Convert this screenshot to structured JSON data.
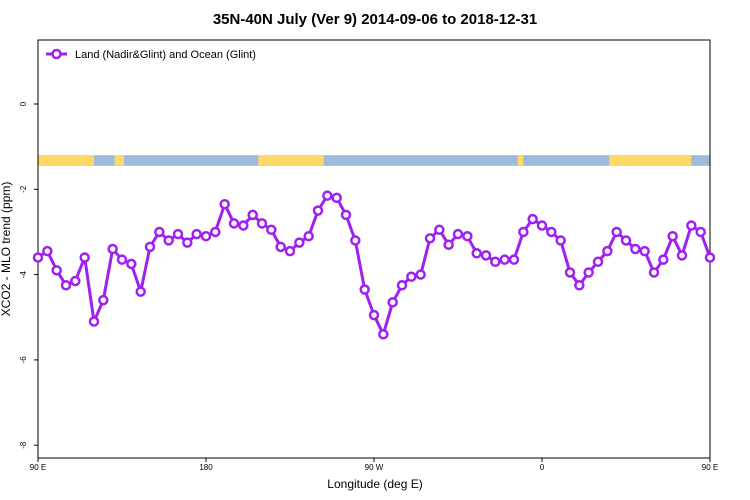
{
  "chart_data": {
    "type": "line",
    "title": "35N-40N July (Ver 9)   2014-09-06 to 2018-12-31",
    "xlabel": "Longitude (deg E)",
    "ylabel": "XCO2 - MLO trend (ppm)",
    "xlim": [
      90,
      450
    ],
    "ylim": [
      -8.3,
      1.5
    ],
    "x_ticks": [
      {
        "value": 90,
        "label": "90 E"
      },
      {
        "value": 180,
        "label": "180"
      },
      {
        "value": 270,
        "label": "90 W"
      },
      {
        "value": 360,
        "label": "0"
      },
      {
        "value": 450,
        "label": "90 E"
      },
      {
        "value": 540,
        "label": "180"
      }
    ],
    "y_ticks": [
      {
        "value": 0,
        "label": "0"
      },
      {
        "value": -2,
        "label": "-2"
      },
      {
        "value": -4,
        "label": "-4"
      },
      {
        "value": -6,
        "label": "-6"
      },
      {
        "value": -8,
        "label": "-8"
      }
    ],
    "grid": false,
    "legend_position": "top-left",
    "colors": {
      "series": "#a020f0",
      "land": "#ffd966",
      "ocean": "#9fb9dc"
    },
    "land_ocean_strip": {
      "y_range": [
        -1.45,
        -1.2
      ],
      "land_ranges": [
        [
          90,
          120
        ],
        [
          131,
          136
        ],
        [
          208,
          243
        ],
        [
          347,
          350
        ],
        [
          396,
          440
        ],
        [
          466,
          468
        ]
      ]
    },
    "series": [
      {
        "name": "Land (Nadir&Glint) and Ocean (Glint)",
        "x": [
          90,
          95,
          100,
          105,
          110,
          115,
          120,
          125,
          130,
          135,
          140,
          145,
          150,
          155,
          160,
          165,
          170,
          175,
          180,
          185,
          190,
          195,
          200,
          205,
          210,
          215,
          220,
          225,
          230,
          235,
          240,
          245,
          250,
          255,
          260,
          265,
          270,
          275,
          280,
          285,
          290,
          295,
          300,
          305,
          310,
          315,
          320,
          325,
          330,
          335,
          340,
          345,
          350,
          355,
          360,
          365,
          370,
          375,
          380,
          385,
          390,
          395,
          400,
          405,
          410,
          415,
          420,
          425,
          430,
          435,
          440,
          445,
          450
        ],
        "y": [
          -3.6,
          -3.45,
          -3.9,
          -4.25,
          -4.15,
          -3.6,
          -5.1,
          -4.6,
          -3.4,
          -3.65,
          -3.75,
          -4.4,
          -3.35,
          -3.0,
          -3.2,
          -3.05,
          -3.25,
          -3.05,
          -3.1,
          -3.0,
          -2.35,
          -2.8,
          -2.85,
          -2.6,
          -2.8,
          -2.95,
          -3.35,
          -3.45,
          -3.25,
          -3.1,
          -2.5,
          -2.15,
          -2.2,
          -2.6,
          -3.2,
          -4.35,
          -4.95,
          -5.4,
          -4.65,
          -4.25,
          -4.05,
          -4.0,
          -3.15,
          -2.95,
          -3.3,
          -3.05,
          -3.1,
          -3.5,
          -3.55,
          -3.7,
          -3.65,
          -3.65,
          -3.0,
          -2.7,
          -2.85,
          -3.0,
          -3.2,
          -3.95,
          -4.25,
          -3.95,
          -3.7,
          -3.45,
          -3.0,
          -3.2,
          -3.4,
          -3.45,
          -3.95,
          -3.65,
          -3.1,
          -3.55,
          -2.85,
          -3.0,
          -3.6
        ]
      }
    ]
  }
}
